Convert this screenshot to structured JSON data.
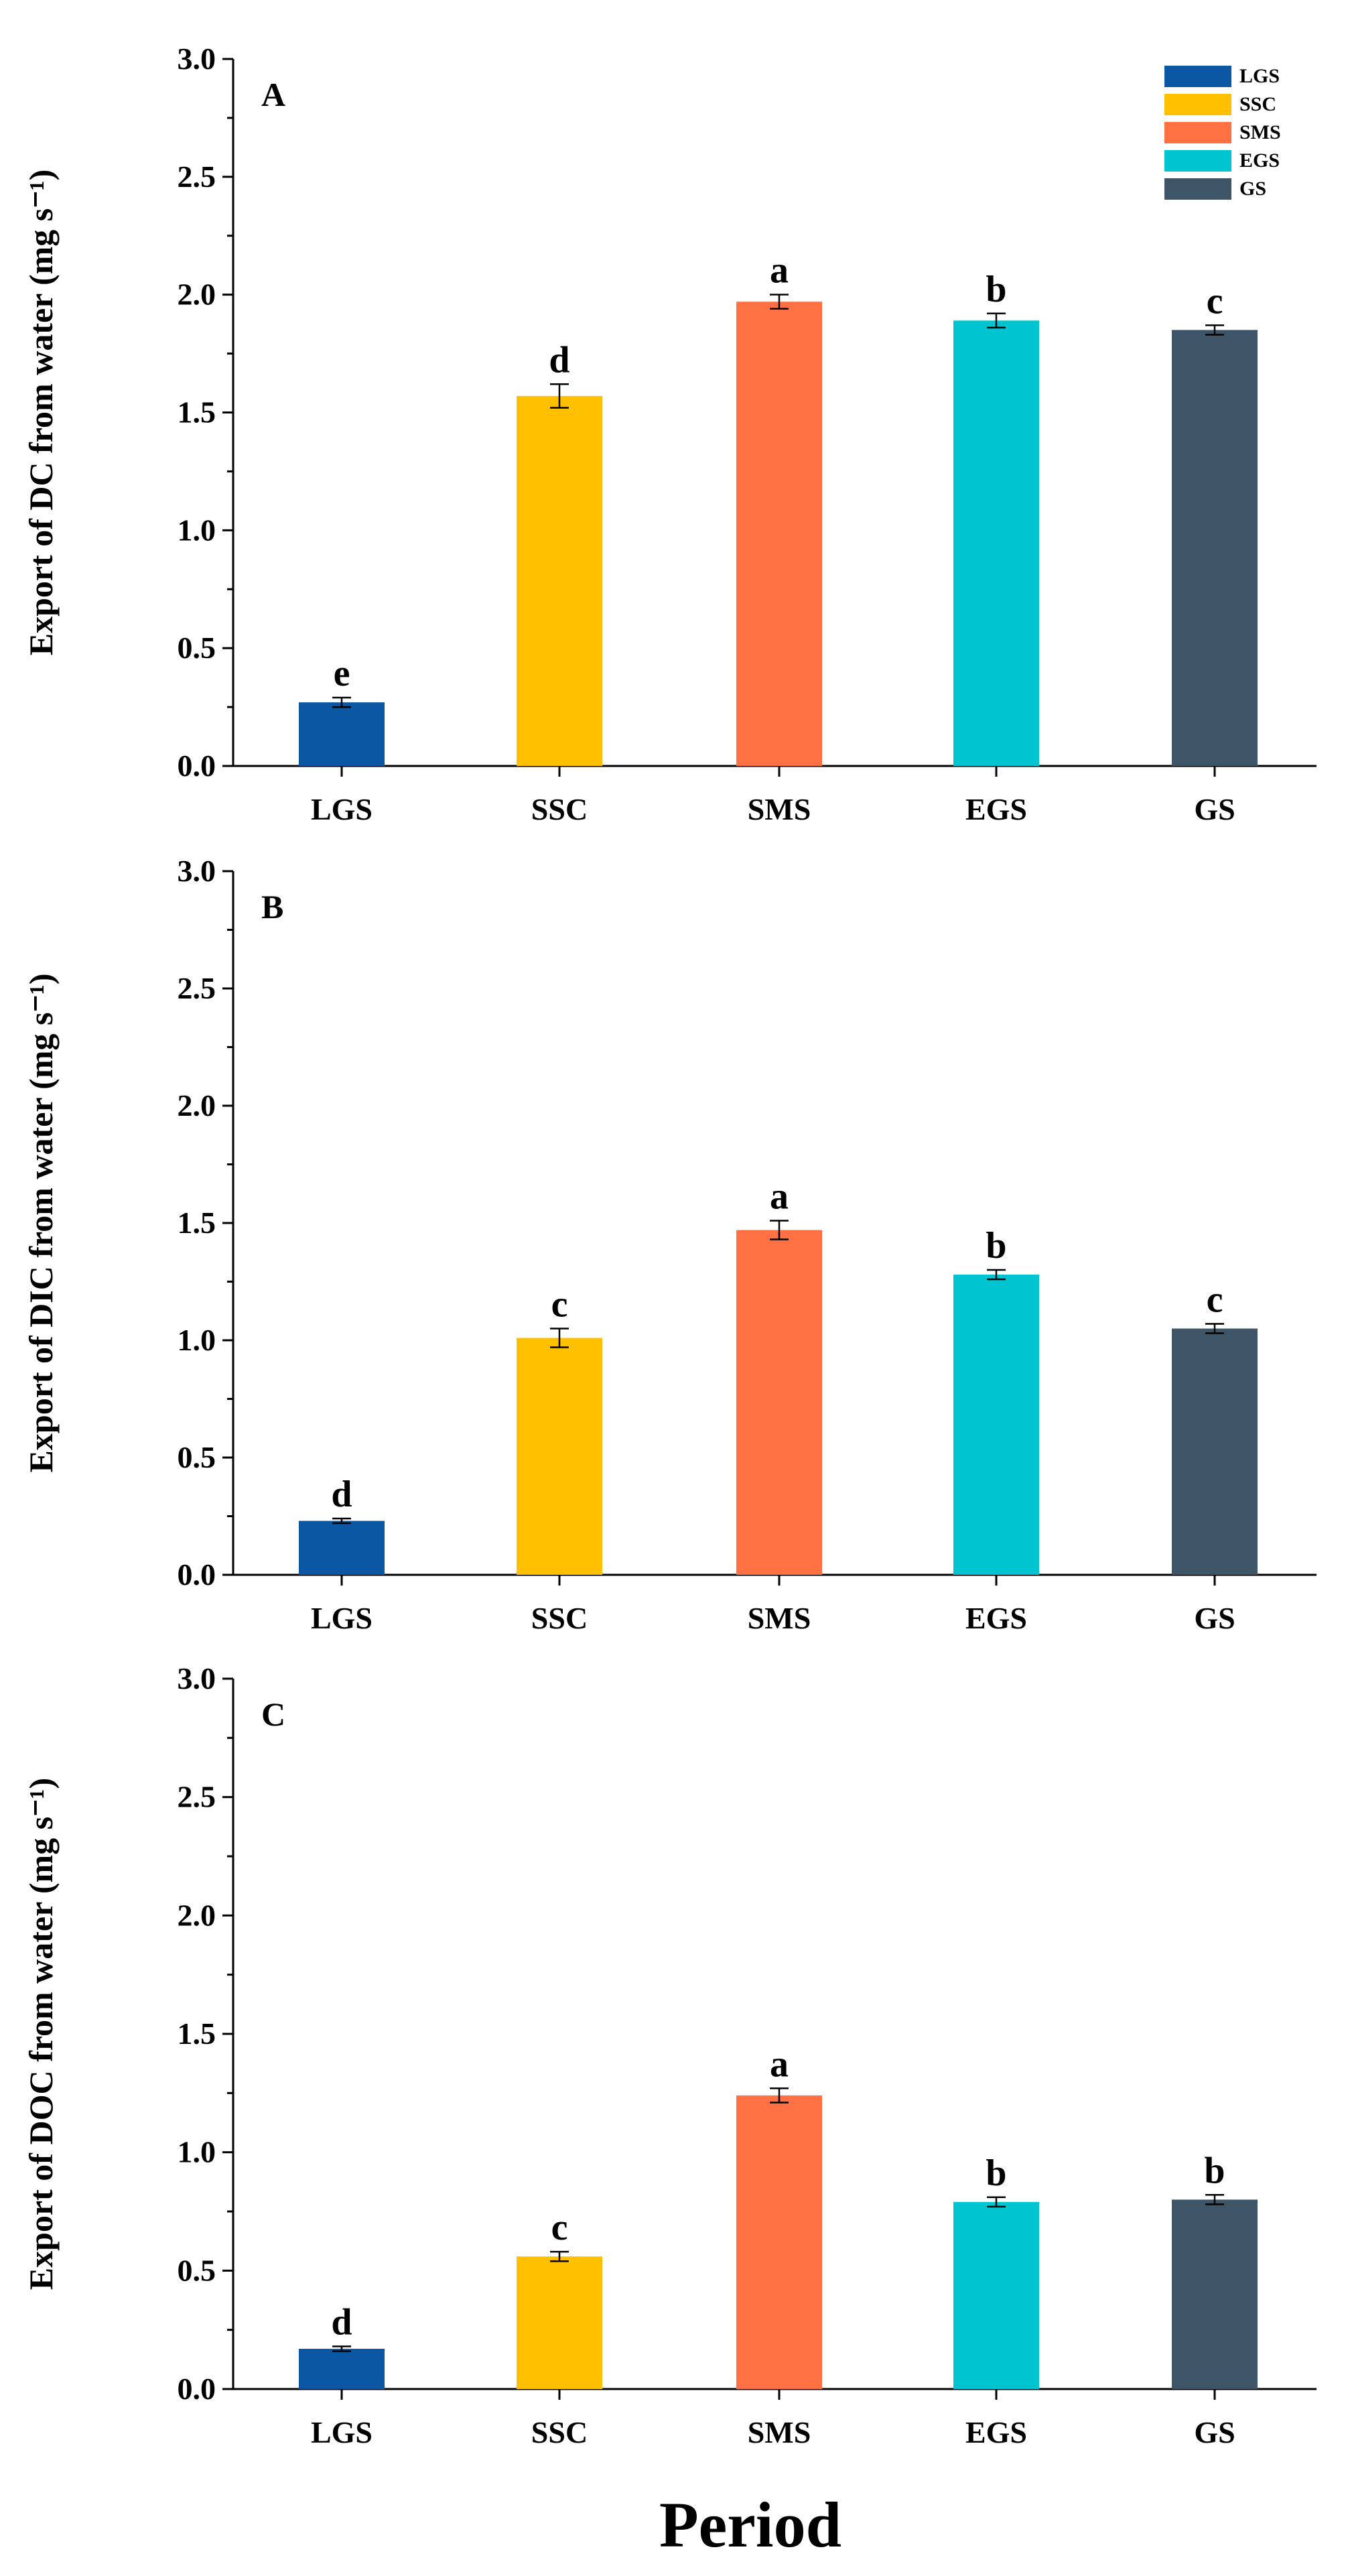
{
  "colors": {
    "LGS": "#0b57a4",
    "SSC": "#ffc000",
    "SMS": "#ff7043",
    "EGS": "#00c5d1",
    "GS": "#3e5568",
    "axis": "#000000"
  },
  "legend": [
    "LGS",
    "SSC",
    "SMS",
    "EGS",
    "GS"
  ],
  "x_title": "Period",
  "chart_data": [
    {
      "type": "bar",
      "panel": "A",
      "ylabel": "Export of DC from water (mg s⁻¹)",
      "ylim": [
        0,
        3.0
      ],
      "yticks": [
        "0.0",
        "0.5",
        "1.0",
        "1.5",
        "2.0",
        "2.5",
        "3.0"
      ],
      "categories": [
        "LGS",
        "SSC",
        "SMS",
        "EGS",
        "GS"
      ],
      "values": [
        0.27,
        1.57,
        1.97,
        1.89,
        1.85
      ],
      "errors": [
        0.02,
        0.05,
        0.03,
        0.03,
        0.02
      ],
      "letters": [
        "e",
        "d",
        "a",
        "b",
        "c"
      ],
      "show_legend": true
    },
    {
      "type": "bar",
      "panel": "B",
      "ylabel": "Export of DIC from water (mg s⁻¹)",
      "ylim": [
        0,
        3.0
      ],
      "yticks": [
        "0.0",
        "0.5",
        "1.0",
        "1.5",
        "2.0",
        "2.5",
        "3.0"
      ],
      "categories": [
        "LGS",
        "SSC",
        "SMS",
        "EGS",
        "GS"
      ],
      "values": [
        0.23,
        1.01,
        1.47,
        1.28,
        1.05
      ],
      "errors": [
        0.01,
        0.04,
        0.04,
        0.02,
        0.02
      ],
      "letters": [
        "d",
        "c",
        "a",
        "b",
        "c"
      ],
      "show_legend": false
    },
    {
      "type": "bar",
      "panel": "C",
      "ylabel": "Export of DOC from water (mg s⁻¹)",
      "ylim": [
        0,
        3.0
      ],
      "yticks": [
        "0.0",
        "0.5",
        "1.0",
        "1.5",
        "2.0",
        "2.5",
        "3.0"
      ],
      "categories": [
        "LGS",
        "SSC",
        "SMS",
        "EGS",
        "GS"
      ],
      "values": [
        0.17,
        0.56,
        1.24,
        0.79,
        0.8
      ],
      "errors": [
        0.01,
        0.02,
        0.03,
        0.02,
        0.02
      ],
      "letters": [
        "d",
        "c",
        "a",
        "b",
        "b"
      ],
      "show_legend": false
    }
  ]
}
